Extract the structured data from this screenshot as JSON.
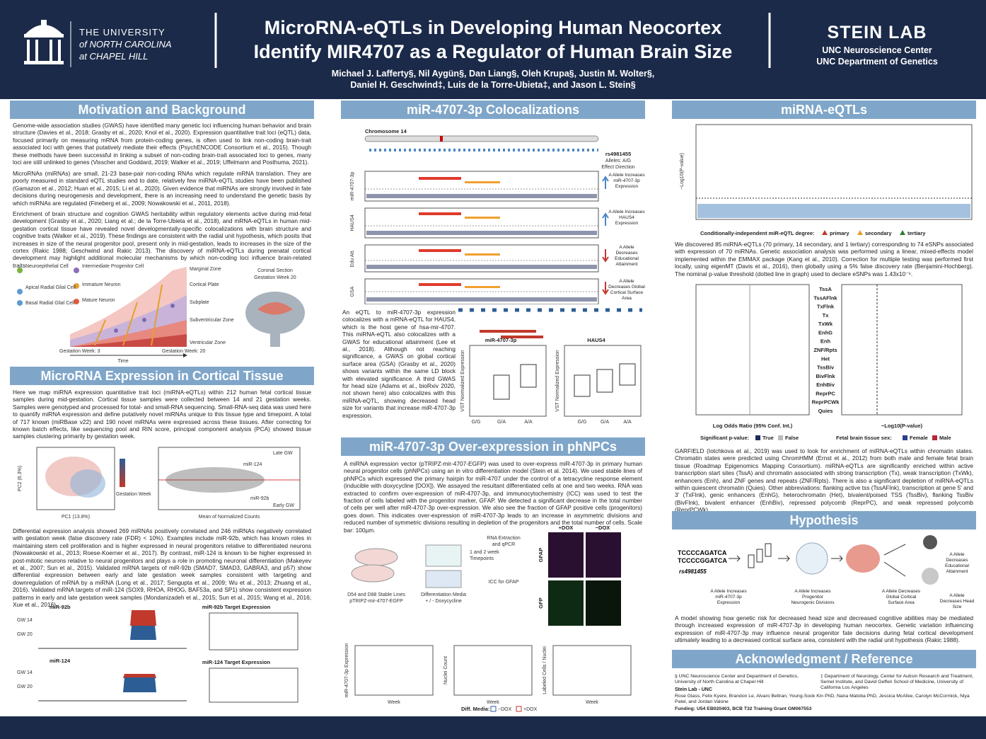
{
  "header": {
    "university": [
      "THE UNIVERSITY",
      "of NORTH CAROLINA",
      "at CHAPEL HILL"
    ],
    "title": [
      "MicroRNA-eQTLs in Developing Human Neocortex",
      "Identify MIR4707 as a Regulator of Human Brain Size"
    ],
    "authors": [
      "Michael J. Lafferty§, Nil Aygün§, Dan Liang§, Oleh Krupa§, Justin M. Wolter§,",
      "Daniel H. Geschwind‡, Luis de la Torre-Ubieta‡, and Jason L. Stein§"
    ],
    "lab": "STEIN LAB",
    "affiliations": [
      "UNC Neuroscience Center",
      "UNC Department of Genetics"
    ]
  },
  "motivation": {
    "title": "Motivation and Background",
    "paragraphs": [
      "Genome-wide association studies (GWAS) have identified many genetic loci influencing human behavior and brain structure (Davies et al., 2018; Grasby et al., 2020; Knol et al., 2020). Expression quantitative trait loci (eQTL) data, focused primarily on measuring mRNA from protein-coding genes, is often used to link non-coding brain-trait associated loci with genes that putatively mediate their effects (PsychENCODE Consortium et al., 2015). Though these methods have been successful in linking a subset of non-coding brain-trait associated loci to genes, many loci are still unlinked to genes (Visscher and Goddard, 2019; Walker et al., 2019; Uffelmann and Posthuma, 2021).",
      "MicroRNAs (miRNAs) are small, 21-23 base-pair non-coding RNAs which regulate mRNA translation. They are poorly measured in standard eQTL studies and to date, relatively few miRNA-eQTL studies have been published (Gamazon et al., 2012; Huan et al., 2015; Li et al., 2020). Given evidence that miRNAs are strongly involved in fate decisions during neurogenesis and development, there is an increasing need to understand the genetic basis by which miRNAs are regulated (Fineberg et al., 2009; Nowakowski et al., 2011, 2018).",
      "Enrichment of brain structure and cognition GWAS heritability within regulatory elements active during mid-fetal development (Grasby et al., 2020; Liang et al.; de la Torre-Ubieta et al., 2018), and mRNA-eQTLs in human mid-gestation cortical tissue have revealed novel developmentally-specific colocalizations with brain structure and cognitive traits (Walker et al., 2019). These findings are consistent with the radial unit hypothesis, which posits that increases in size of the neural progenitor pool, present only in mid-gestation, leads to increases in the size of the cortex (Rakic 1988; Geschwind and Rakic 2013). The discovery of miRNA-eQTLs during prenatal cortical development may highlight additional molecular mechanisms by which non-coding loci influence brain-related traits."
    ],
    "figure_labels": [
      "Neuroepithelial Cell",
      "Intermediate Progenitor Cell",
      "Apical Radial Glial Cell",
      "Immature Neuron",
      "Basal Radial Glial Cell",
      "Mature Neuron",
      "Marginal Zone",
      "Cortical Plate",
      "Subplate",
      "Subventricular Zone",
      "Ventricular Zone",
      "Gestation Week: 3",
      "Gestation Week: 20",
      "Time",
      "Coronal Section",
      "Gestation Week 20"
    ]
  },
  "cortical": {
    "title": "MicroRNA Expression in Cortical Tissue",
    "paragraphs": [
      "Here we map miRNA expression quantitative trait loci (miRNA-eQTLs) within 212 human fetal cortical tissue samples during mid-gestation. Cortical tissue samples were collected between 14 and 21 gestation weeks. Samples were genotyped and processed for total- and small-RNA sequencing. Small-RNA-seq data was used here to quantify miRNA expression and define putatively novel miRNAs unique to this tissue type and timepoint. A total of 717 known (miRBase v22) and 190 novel miRNAs were expressed across these tissues. After correcting for known batch effects, like sequencing pool and RIN score, principal component analysis (PCA) showed tissue samples clustering primarily by gestation week.",
      "Differential expression analysis showed 269 miRNAs positively correlated and 246 miRNAs negatively correlated with gestation week (false discovery rate (FDR) < 10%). Examples include miR-92b, which has known roles in maintaining stem cell proliferation and is higher expressed in neural progenitors relative to differentiated neurons (Nowakowski et al., 2013; Roese-Koerner et al., 2017). By contrast, miR-124 is known to be higher expressed in post-mitotic neurons relative to neural progenitors and plays a role in promoting neuronal differentiation (Makeyev et al., 2007; Sun et al., 2015). Validated mRNA targets of miR-92b (SMAD7, SMAD3, GABRA3, and p57) show differential expression between early and late gestation week samples consistent with targeting and downregulation of mRNA by a miRNA (Long et al., 2017; Sengupta et al., 2009; Wu et al., 2013; Zhuang et al., 2016). Validated mRNA targets of miR-124 (SOX9, RHOA, RHOG, BAF53a, and SP1) show consistent expression patterns in early and late gestation week samples (Mondanizadeh et al., 2015; Sun et al., 2015; Wang et al., 2016; Xue et al., 2016)."
    ],
    "figure_labels": [
      "PC1 (13.8%)",
      "PC2 (6.3%)",
      "Gestation Week",
      "Mean of Normalized Counts",
      "Late GW",
      "Early GW",
      "miR-124",
      "miR-92b",
      "miR-92b",
      "miR-124",
      "miR-92b Target Expression",
      "miR-124 Target Expression",
      "GW 14",
      "GW 20",
      "GW 14",
      "GW 20"
    ]
  },
  "colocalization": {
    "title": "miR-4707-3p Colocalizations",
    "paragraph": "An eQTL to miR-4707-3p expression colocalizes with a mRNA-eQTL for HAUS4, which is the host gene of hsa-mir-4707. This miRNA-eQTL also colocalizes with a GWAS for educational attainment (Lee et al., 2018). Although not reaching significance, a GWAS on global cortical surface area (GSA) (Grasby et al., 2020) shows variants within the same LD block with elevated significance. A third GWAS for head size (Adams et al., bioRxiv 2020, not shown here) also colocalizes with this miRNA-eQTL, showing decreased head size for variants that increase miR-4707-3p expression.",
    "chromosome": "Chromosome 14",
    "snp": "rs4981455",
    "alleles": "Alleles: A/G",
    "effect": "Effect Direction",
    "tracks": [
      "miR-4707-3p",
      "HAUS4",
      "Edu Att.",
      "GSA"
    ],
    "effects": [
      "A Allele Increases miR-4707-3p Expression",
      "A Allele Increases HAUS4 Expression",
      "A Allele Decreases Educational Attainment",
      "A Allele Decreases Global Cortical Surface Area"
    ],
    "boxplots": [
      "miR-4707-3p",
      "HAUS4"
    ],
    "genotypes": [
      "G/G",
      "G/A",
      "A/A"
    ],
    "y_label": "VST Normalized Expression"
  },
  "overexpression": {
    "title": "miR-4707-3p Over-expression in phNPCs",
    "paragraph": "A miRNA expression vector (pTRIPZ-mir-4707-EGFP) was used to over-express miR-4707-3p in primary human neural progenitor cells (phNPCs) using an in vitro differentiation model (Stein et al. 2014). We used stable lines of phNPCs which expressed the primary hairpin for miR-4707 under the control of a tetracycline response element (inducible with doxycycline [DOX]). We assayed the resultant differentiated cells at one and two weeks. RNA was extracted to confirm over-expression of miR-4707-3p, and immunocytochemistry (ICC) was used to test the fraction of cells labeled with the progenitor marker, GFAP. We detected a significant decrease in the total number of cells per well after miR-4707-3p over-expression. We also see the fraction of GFAP positive cells (progenitors) goes down. This indicates over-expression of miR-4707-3p leads to an increase in asymmetric divisions and reduced number of symmetric divisions resulting in depletion of the progenitors and the total number of cells. Scale bar: 100µm.",
    "figure_labels": [
      "D54 and D88 Stable Lines",
      "pTRIPZ-mir-4707-EGFP",
      "Differentiation Media",
      "+ / - Doxycycline",
      "1 and 2 week",
      "Timepoints",
      "RNA Extraction",
      "and qPCR",
      "ICC for GFAP",
      "+DOX",
      "−DOX",
      "GFAP",
      "GFP"
    ],
    "panels": [
      "miR-4707-3p Expression",
      "Nuclei Count",
      "Labeled Cells / Nuclei"
    ],
    "week": "Week",
    "legend": [
      "Diff. Media:",
      "−DOX",
      "+DOX"
    ]
  },
  "eqtls": {
    "title": "miRNA-eQTLs",
    "y_label": "−Log10(P-value)",
    "legend": [
      "Conditionally-independent miR-eQTL degree:",
      "primary",
      "secondary",
      "tertiary"
    ],
    "paragraph": "We discovered 85 miRNA-eQTLs (70 primary, 14 secondary, and 1 tertiary) corresponding to 74 eSNPs associated with expression of 70 miRNAs. Genetic association analysis was performed using a linear, mixed-effects model implemented within the EMMAX package (Kang et al., 2010). Correction for multiple testing was performed first locally, using eigenMT (Davis et al., 2016), then globally using a 5% false discovery rate (Benjamini-Hochberg). The nominal p-value threshold (dotted line in graph) used to declare eSNPs was 1.43x10⁻⁶.",
    "states": [
      "TssA",
      "TssAFlnk",
      "TxFlnk",
      "Tx",
      "TxWk",
      "EnhG",
      "Enh",
      "ZNF/Rpts",
      "Het",
      "TssBiv",
      "BivFlnk",
      "EnhBiv",
      "ReprPC",
      "ReprPCWk",
      "Quies"
    ],
    "forest_x": "Log Odds Ratio (95% Conf. Int.)",
    "bar_x": "−Log10(P-value)",
    "forest_legend": [
      "Significant p-value:",
      "True",
      "False",
      "Fetal brain tissue sex:",
      "Female",
      "Male"
    ],
    "paragraph2": "GARFIELD (Iotchkova et al., 2019) was used to look for enrichment of miRNA-eQTLs within chromatin states. Chromatin states were predicted using ChromHMM (Ernst et al., 2012) from both male and female fetal brain tissue (Roadmap Epigenomics Mapping Consortium). miRNA-eQTLs are significantly enriched within active transcription start sites (TssA) and chromatin associated with strong transcription (Tx), weak transcription (TxWk), enhancers (Enh), and ZNF genes and repeats (ZNF/Rpts). There is also a significant depletion of miRNA-eQTLs within quiescent chromatin (Quies). Other abbreviations: flanking active tss (TssAFlnk), transcription at gene 5' and 3' (TxFlnk), genic enhancers (EnhG), heterochromatin (Het), bivalent/poised TSS (TssBiv), flanking TssBiv (BivFlnk), bivalent enhancer (EnhBiv), repressed polycomb (ReprPC), and weak repressed polycomb (ReprPCWk)."
  },
  "hypothesis": {
    "title": "Hypothesis",
    "sequence": [
      "TCCCCAGATCA",
      "TCCCCGGATCA"
    ],
    "snp": "rs4981455",
    "steps": [
      "A Allele Increases miR-4707-3p Expression",
      "A Allele Increases Progenitor Neurogenic Divisions",
      "A Allele Decreases Global Cortical Surface Area",
      "A Allele Decreases Educational Attainment",
      "A Allele Decreases Head Size"
    ],
    "paragraph": "A model showing how genetic risk for decreased head size and decreased cognitive abilities may be mediated through increased expression of miR-4707-3p in developing human neocortex. Genetic variation influencing expression of miR-4707-3p may influence neural progenitor fate decisions during fetal cortical development ultimately leading to a decreased cortical surface area, consistent with the radial unit hypothesis (Rakic 1988)."
  },
  "acknowledgment": {
    "title": "Acknowledgment / Reference",
    "affiliations": [
      "§ UNC Neuroscience Center and Department of Genetics, University of North Carolina at Chapel Hill",
      "‡ Department of Neurology, Center for Autism Research and Treatment, Semel Institute, and David Geffen School of Medicine, University of California Los Angeles"
    ],
    "lab_title": "Stein Lab - UNC",
    "members": "Rose Glass, Felix Kyere, Brandon Le, Alvaro Beltran, Young-Sook Kin PhD, Nana Matoba PhD, Jessica McAfee, Carolyn McCormick, Niyа Patel, and Jordan Valone",
    "funding": "Funding: U54 EB020403, BCB T32 Training Grant GM067553"
  }
}
